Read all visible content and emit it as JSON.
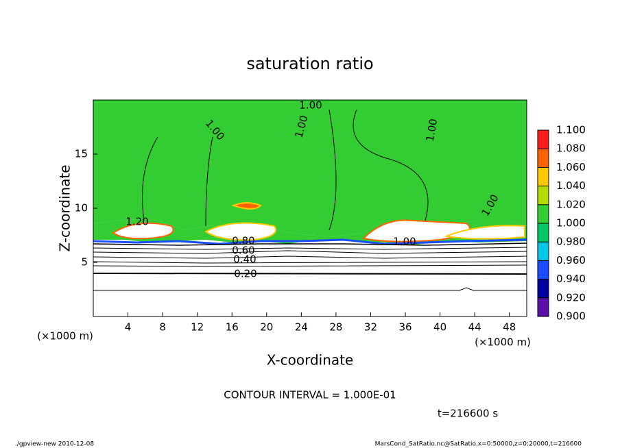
{
  "chart_data": {
    "type": "contour",
    "title": "saturation ratio",
    "x_label": "X-coordinate",
    "y_label": "Z-coordinate",
    "x_unit": "(×1000 m)",
    "y_unit": "(×1000 m)",
    "xlim": [
      0,
      50
    ],
    "ylim": [
      0,
      20
    ],
    "xticks": [
      4,
      8,
      12,
      16,
      20,
      24,
      28,
      32,
      36,
      40,
      44,
      48
    ],
    "yticks": [
      5,
      10,
      15
    ],
    "colorbar": {
      "lim": [
        0.9,
        1.1
      ],
      "ticks": [
        {
          "value": 0.9,
          "label": "0.900"
        },
        {
          "value": 0.92,
          "label": "0.920"
        },
        {
          "value": 0.94,
          "label": "0.940"
        },
        {
          "value": 0.96,
          "label": "0.960"
        },
        {
          "value": 0.98,
          "label": "0.980"
        },
        {
          "value": 1.0,
          "label": "1.000"
        },
        {
          "value": 1.02,
          "label": "1.020"
        },
        {
          "value": 1.04,
          "label": "1.040"
        },
        {
          "value": 1.06,
          "label": "1.060"
        },
        {
          "value": 1.08,
          "label": "1.080"
        },
        {
          "value": 1.1,
          "label": "1.100"
        }
      ],
      "colors": [
        "#5a10a8",
        "#0000a0",
        "#1a4cff",
        "#00c8e6",
        "#00c864",
        "#33cc33",
        "#b4dc00",
        "#ffc800",
        "#ff6400",
        "#ff1e1e"
      ]
    },
    "contour_labels": [
      {
        "value": 1.0,
        "label": "1.00"
      },
      {
        "value": 1.0,
        "label": "1.00"
      },
      {
        "value": 1.0,
        "label": "1.00"
      },
      {
        "value": 1.0,
        "label": "1.00"
      },
      {
        "value": 1.0,
        "label": "1.00"
      },
      {
        "value": 1.2,
        "label": "1.20"
      },
      {
        "value": 1.0,
        "label": "1.00"
      },
      {
        "value": 0.8,
        "label": "0.80"
      },
      {
        "value": 0.6,
        "label": "0.60"
      },
      {
        "value": 0.4,
        "label": "0.40"
      },
      {
        "value": 0.2,
        "label": "0.20"
      }
    ],
    "contour_interval": "CONTOUR INTERVAL = 1.000E-01",
    "time_label": "t=216600 s",
    "footer_left": "./gpview-new  2010-12-08",
    "footer_right": "MarsCond_SatRatio.nc@SatRatio,x=0:50000,z=0:20000,t=216600"
  }
}
